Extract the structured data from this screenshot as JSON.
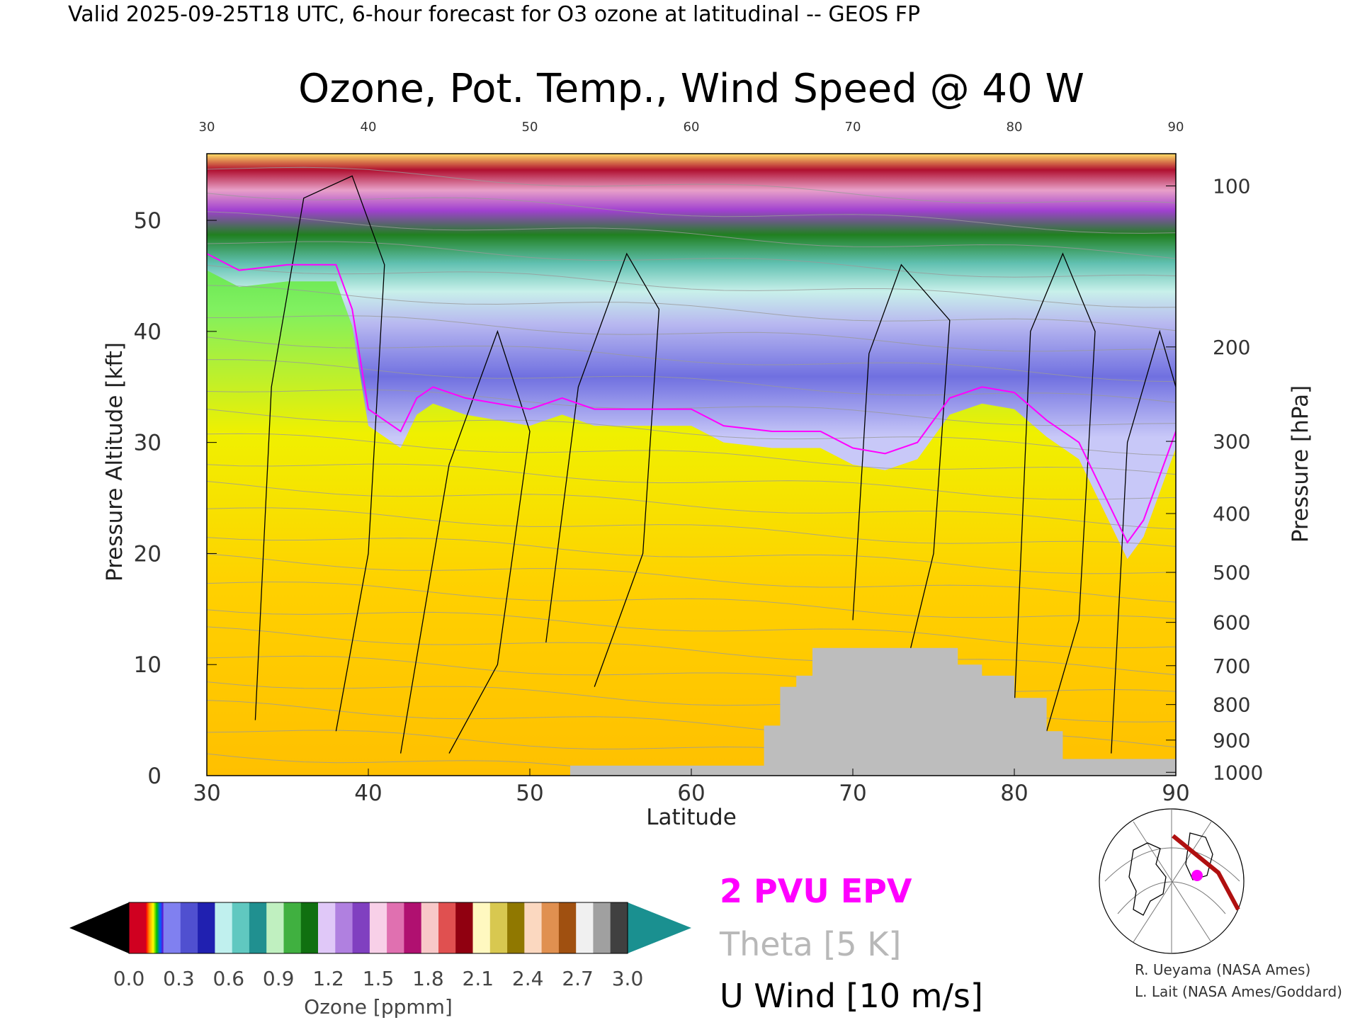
{
  "header": "Valid 2025-09-25T18 UTC, 6-hour forecast for O3 ozone at latitudinal -- GEOS FP",
  "chart_data": {
    "type": "heatmap",
    "title": "Ozone, Pot. Temp., Wind Speed @ 40 W",
    "xlabel": "Latitude",
    "ylabel": "Pressure Altitude [kft]",
    "y2label": "Pressure [hPa]",
    "xlim": [
      30,
      90
    ],
    "ylim": [
      0,
      56
    ],
    "x_ticks": [
      30,
      40,
      50,
      60,
      70,
      80,
      90
    ],
    "y_ticks": [
      0,
      10,
      20,
      30,
      40,
      50
    ],
    "pressure_ticks": [
      {
        "hpa": "100",
        "kft": 53.1
      },
      {
        "hpa": "200",
        "kft": 38.6
      },
      {
        "hpa": "300",
        "kft": 30.1
      },
      {
        "hpa": "400",
        "kft": 23.6
      },
      {
        "hpa": "500",
        "kft": 18.3
      },
      {
        "hpa": "600",
        "kft": 13.8
      },
      {
        "hpa": "700",
        "kft": 9.9
      },
      {
        "hpa": "800",
        "kft": 6.4
      },
      {
        "hpa": "900",
        "kft": 3.2
      },
      {
        "hpa": "1000",
        "kft": 0.3
      }
    ],
    "tropopause_2pvu_kft": [
      [
        30,
        47
      ],
      [
        32,
        45.5
      ],
      [
        35,
        46
      ],
      [
        38,
        46
      ],
      [
        39,
        42
      ],
      [
        40,
        33
      ],
      [
        41,
        32
      ],
      [
        42,
        31
      ],
      [
        43,
        34
      ],
      [
        44,
        35
      ],
      [
        46,
        34
      ],
      [
        48,
        33.5
      ],
      [
        50,
        33
      ],
      [
        52,
        34
      ],
      [
        54,
        33
      ],
      [
        56,
        33
      ],
      [
        58,
        33
      ],
      [
        60,
        33
      ],
      [
        62,
        31.5
      ],
      [
        65,
        31
      ],
      [
        68,
        31
      ],
      [
        70,
        29.5
      ],
      [
        72,
        29
      ],
      [
        74,
        30
      ],
      [
        76,
        34
      ],
      [
        78,
        35
      ],
      [
        80,
        34.5
      ],
      [
        82,
        32
      ],
      [
        84,
        30
      ],
      [
        86,
        24
      ],
      [
        87,
        21
      ],
      [
        88,
        23
      ],
      [
        90,
        31
      ]
    ],
    "terrain_kft": [
      [
        30,
        0
      ],
      [
        52.5,
        0
      ],
      [
        52.5,
        0.9
      ],
      [
        64.5,
        0.9
      ],
      [
        64.5,
        4.5
      ],
      [
        65.5,
        4.5
      ],
      [
        65.5,
        8
      ],
      [
        66.5,
        8
      ],
      [
        66.5,
        9
      ],
      [
        67.5,
        9
      ],
      [
        67.5,
        11.5
      ],
      [
        76.5,
        11.5
      ],
      [
        76.5,
        10
      ],
      [
        78,
        10
      ],
      [
        78,
        9
      ],
      [
        80,
        9
      ],
      [
        80,
        7
      ],
      [
        82,
        7
      ],
      [
        82,
        4
      ],
      [
        83,
        4
      ],
      [
        83,
        1.5
      ],
      [
        90,
        1.5
      ]
    ],
    "colorbar": {
      "label": "Ozone [ppmm]",
      "range": [
        0.0,
        3.0
      ],
      "tick_labels": [
        "0.0",
        "0.3",
        "0.6",
        "0.9",
        "1.2",
        "1.5",
        "1.8",
        "2.1",
        "2.4",
        "2.7",
        "3.0"
      ]
    },
    "legend": [
      {
        "label": "2 PVU EPV",
        "color": "#ff00ff"
      },
      {
        "label": "Theta [5 K]",
        "color": "#b8b8b8"
      },
      {
        "label": "U Wind [10 m/s]",
        "color": "#000000"
      }
    ]
  },
  "credits": [
    "R. Ueyama (NASA Ames)",
    "L. Lait (NASA Ames/Goddard)"
  ]
}
